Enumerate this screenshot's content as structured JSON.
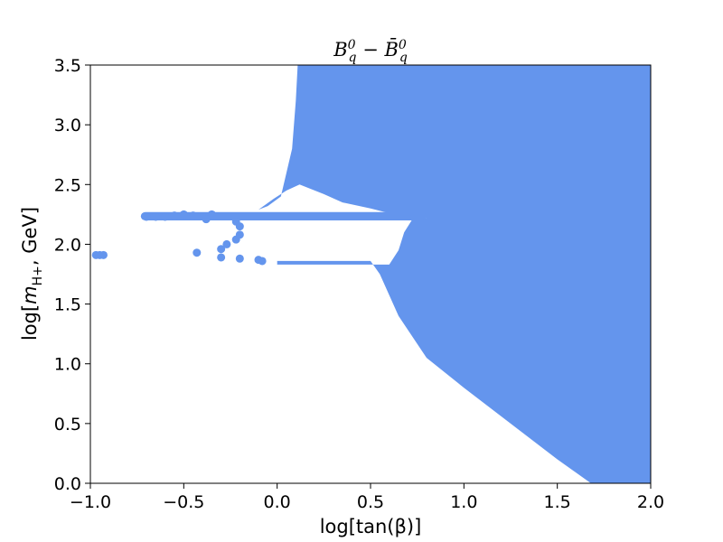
{
  "chart_data": {
    "type": "scatter",
    "title_parts": {
      "b": "B",
      "sup": "0",
      "sub": "q",
      "minus": " − ",
      "bbar": "B̄"
    },
    "xlabel": "log[tan(β)]",
    "ylabel": "log[m_{H+}, GeV]",
    "ylabel_parts": {
      "pre": "log[",
      "m": "m",
      "sub": "H+",
      "post": ", GeV]"
    },
    "xlim": [
      -1.0,
      2.0
    ],
    "ylim": [
      0.0,
      3.5
    ],
    "xticks": [
      "−1.0",
      "−0.5",
      "0.0",
      "0.5",
      "1.0",
      "1.5",
      "2.0"
    ],
    "yticks": [
      "0.0",
      "0.5",
      "1.0",
      "1.5",
      "2.0",
      "2.5",
      "3.0",
      "3.5"
    ],
    "grid": false,
    "color": "#6495ED",
    "allowed_region": {
      "right_block": [
        [
          0.11,
          3.5
        ],
        [
          2.0,
          3.5
        ],
        [
          2.0,
          0.0
        ],
        [
          1.68,
          0.0
        ],
        [
          1.5,
          0.2
        ],
        [
          1.0,
          0.8
        ],
        [
          0.8,
          1.05
        ],
        [
          0.65,
          1.4
        ],
        [
          0.55,
          1.75
        ],
        [
          0.5,
          1.86
        ],
        [
          0.0,
          1.86
        ],
        [
          0.0,
          1.83
        ],
        [
          0.6,
          1.83
        ],
        [
          0.65,
          1.95
        ],
        [
          0.68,
          2.1
        ],
        [
          0.72,
          2.2
        ],
        [
          0.8,
          2.22
        ],
        [
          0.6,
          2.26
        ],
        [
          0.5,
          2.3
        ],
        [
          0.35,
          2.35
        ],
        [
          0.25,
          2.42
        ],
        [
          0.12,
          2.5
        ],
        [
          0.05,
          2.45
        ],
        [
          -0.02,
          2.38
        ],
        [
          -0.1,
          2.29
        ],
        [
          -0.05,
          2.32
        ],
        [
          0.02,
          2.4
        ],
        [
          0.08,
          2.8
        ],
        [
          0.1,
          3.2
        ]
      ],
      "upper_branch_band": {
        "x": [
          -0.73,
          0.8
        ],
        "y": [
          2.2,
          2.27
        ]
      },
      "scattered_points": [
        [
          -0.95,
          1.91
        ],
        [
          -0.97,
          1.91
        ],
        [
          -0.93,
          1.91
        ],
        [
          -0.43,
          1.93
        ],
        [
          -0.3,
          1.89
        ],
        [
          -0.2,
          1.88
        ],
        [
          -0.1,
          1.87
        ],
        [
          -0.08,
          1.86
        ],
        [
          -0.3,
          1.96
        ],
        [
          -0.27,
          2.0
        ],
        [
          -0.22,
          2.04
        ],
        [
          -0.2,
          2.08
        ],
        [
          -0.2,
          2.15
        ],
        [
          -0.22,
          2.19
        ],
        [
          -0.35,
          2.25
        ],
        [
          -0.38,
          2.21
        ],
        [
          -0.45,
          2.24
        ],
        [
          -0.5,
          2.25
        ],
        [
          -0.55,
          2.24
        ],
        [
          -0.6,
          2.23
        ],
        [
          -0.65,
          2.23
        ],
        [
          -0.7,
          2.23
        ]
      ]
    }
  }
}
